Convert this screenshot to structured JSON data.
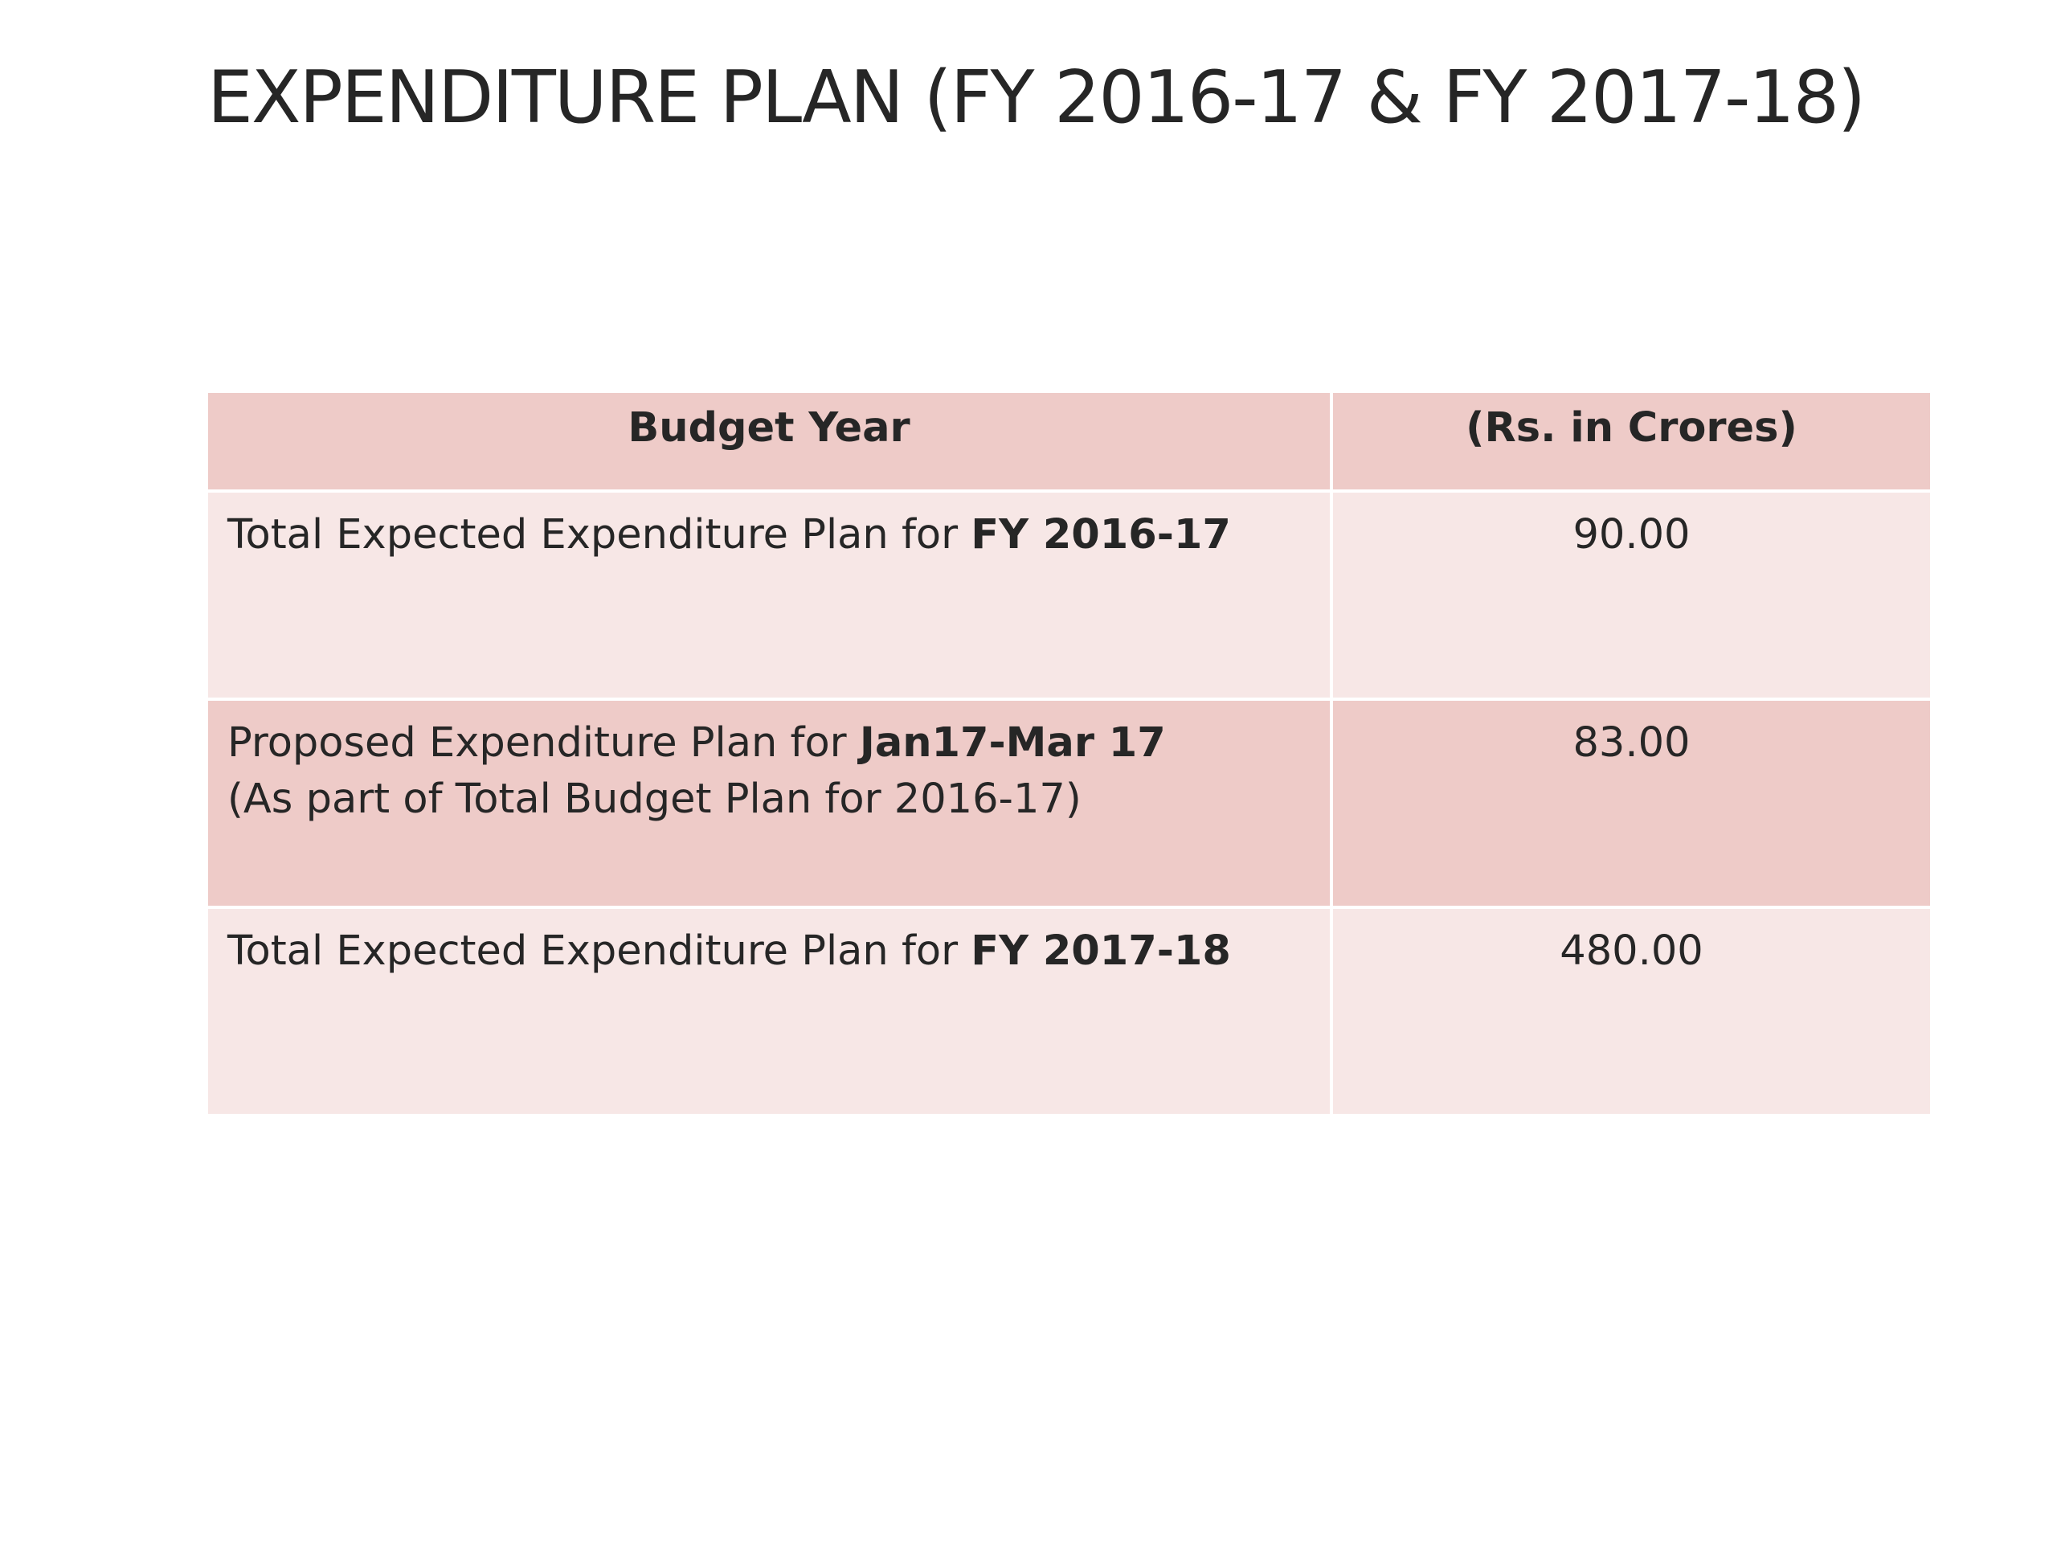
{
  "slide": {
    "title": "EXPENDITURE PLAN (FY 2016-17 & FY 2017-18)"
  },
  "table": {
    "headers": [
      "Budget Year",
      "(Rs. in Crores)"
    ],
    "rows": [
      {
        "label_prefix": "Total Expected Expenditure Plan for ",
        "label_bold": "FY 2016-17",
        "label_note": "",
        "value": "90.00"
      },
      {
        "label_prefix": "Proposed Expenditure Plan for ",
        "label_bold": "Jan17-Mar 17",
        "label_note": "(As part of Total Budget Plan for 2016-17)",
        "value": "83.00"
      },
      {
        "label_prefix": "Total Expected Expenditure Plan for ",
        "label_bold": "FY 2017-18",
        "label_note": "",
        "value": "480.00"
      }
    ]
  },
  "colors": {
    "header_fill": "#eecbc8",
    "row_light_fill": "#f7e7e6",
    "row_dark_fill": "#eecbc8",
    "text": "#262626"
  }
}
